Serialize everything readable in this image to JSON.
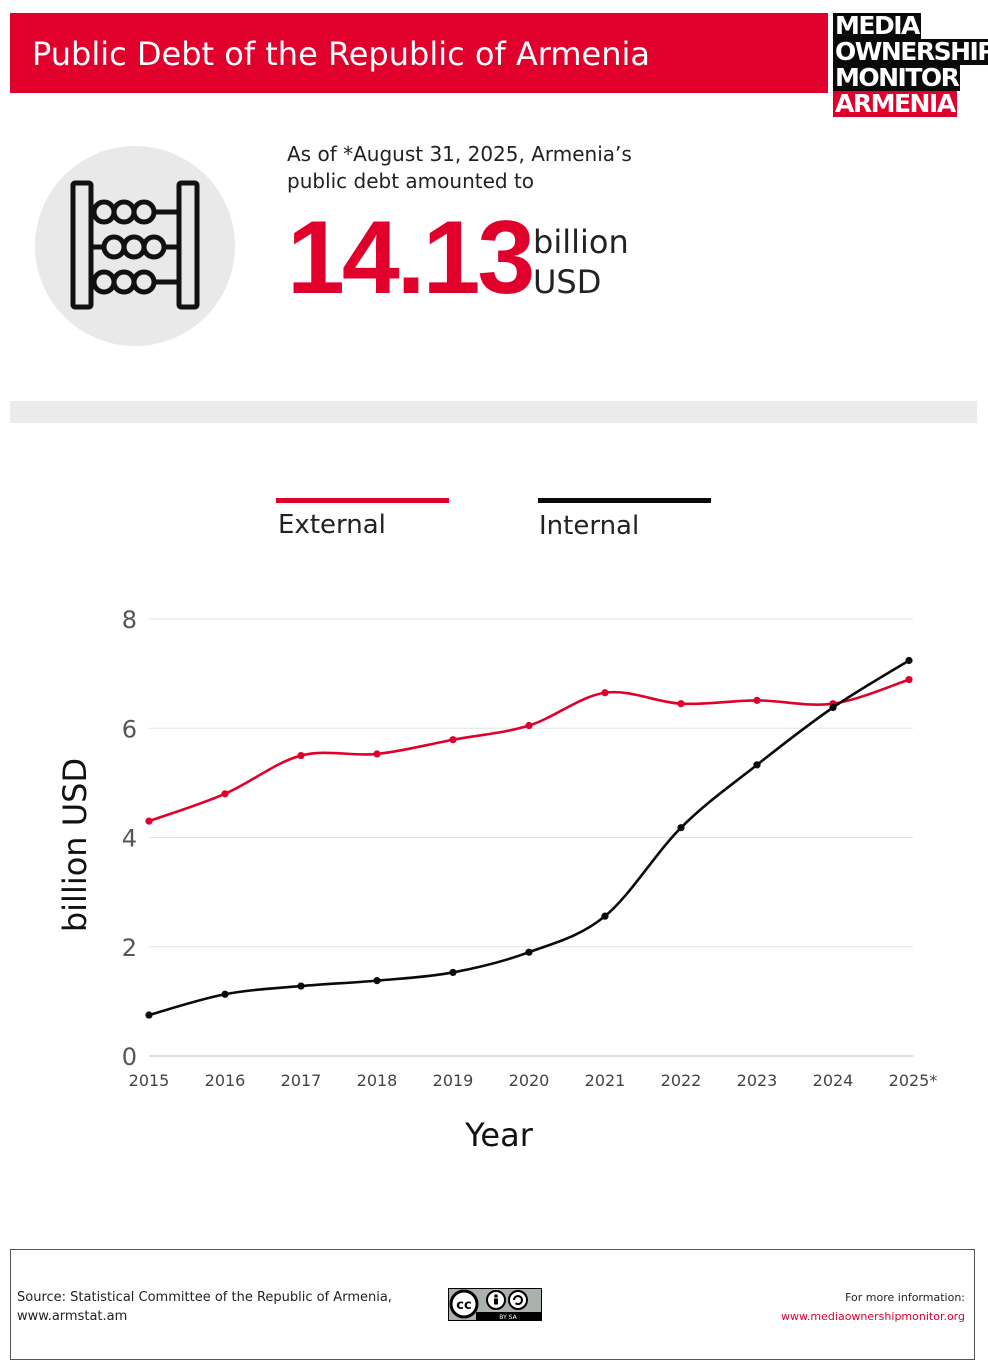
{
  "header": {
    "title": "Public Debt of the Republic of Armenia",
    "logo_lines": [
      "MEDIA",
      "OWNERSHIP",
      "MONITOR",
      "ARMENIA"
    ]
  },
  "summary": {
    "intro": "As of *August 31, 2025, Armenia’s public debt amounted to",
    "amount": "14.13",
    "unit_line1": "billion",
    "unit_line2": "USD",
    "icon": "abacus-icon"
  },
  "legend": [
    {
      "label": "External",
      "color": "#e0002b"
    },
    {
      "label": "Internal",
      "color": "#0a0a0a"
    }
  ],
  "chart_data": {
    "type": "line",
    "xlabel": "Year",
    "ylabel": "billion USD",
    "categories": [
      "2015",
      "2016",
      "2017",
      "2018",
      "2019",
      "2020",
      "2021",
      "2022",
      "2023",
      "2024",
      "2025*"
    ],
    "ylim": [
      0,
      8
    ],
    "yticks": [
      0,
      2,
      4,
      6,
      8
    ],
    "grid": true,
    "legend_position": "top",
    "series": [
      {
        "name": "External",
        "color": "#e0002b",
        "values": [
          4.3,
          4.8,
          5.5,
          5.53,
          5.79,
          6.05,
          6.65,
          6.45,
          6.51,
          6.45,
          6.89
        ]
      },
      {
        "name": "Internal",
        "color": "#0a0a0a",
        "values": [
          0.75,
          1.13,
          1.28,
          1.38,
          1.53,
          1.9,
          2.56,
          4.18,
          5.33,
          6.38,
          7.24
        ]
      }
    ]
  },
  "footer": {
    "source_line1": "Source: Statistical Committee of the Republic of Armenia,",
    "source_line2": "www.armstat.am",
    "license_icon": "cc-by-sa-icon",
    "license_text": "BY SA",
    "more_label": "For more information:",
    "more_url": "www.mediaownershipmonitor.org"
  }
}
